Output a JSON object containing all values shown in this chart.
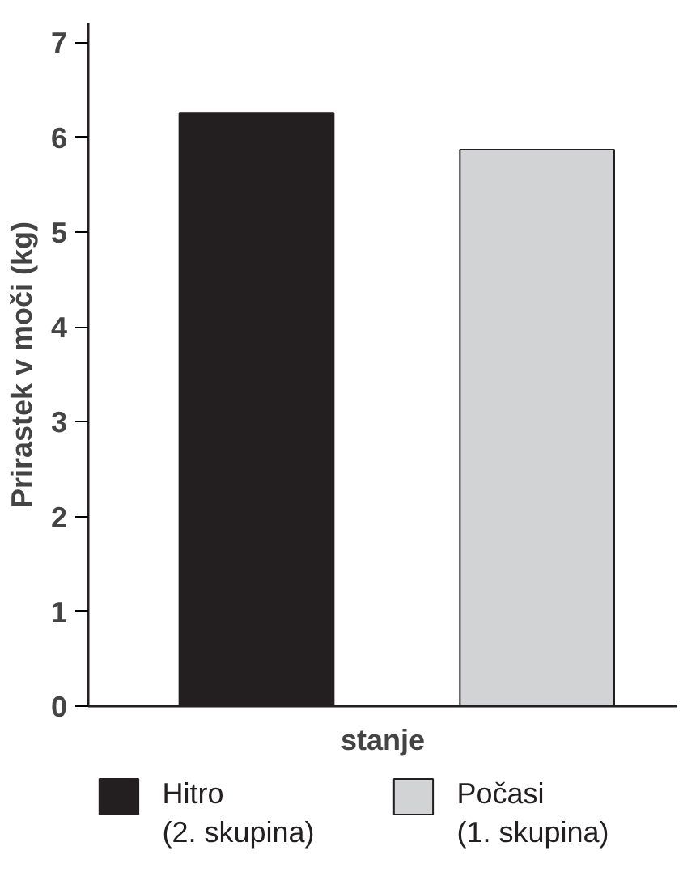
{
  "chart_data": {
    "type": "bar",
    "ylabel": "Prirastek v moči (kg)",
    "xlabel": "stanje",
    "categories": [
      null,
      null
    ],
    "series": [
      {
        "name": "Hitro (2. skupina)",
        "color": "#231f20",
        "values": [
          6.25,
          null
        ]
      },
      {
        "name": "Počasi (1. skupina)",
        "color": "#d1d3d4",
        "values": [
          null,
          5.87
        ]
      }
    ],
    "ylim": [
      0,
      7.2
    ],
    "yticks": [
      0,
      1,
      2,
      3,
      4,
      5,
      6,
      7
    ],
    "grid": false,
    "legend": "bottom"
  }
}
